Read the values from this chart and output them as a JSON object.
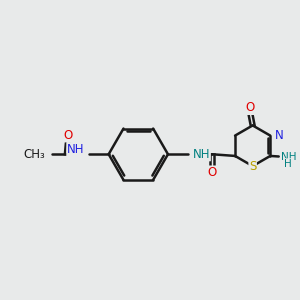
{
  "background_color": "#e8eaea",
  "bond_color": "#1a1a1a",
  "bond_width": 1.8,
  "atom_colors": {
    "C": "#1a1a1a",
    "N": "#2020e0",
    "O": "#e00000",
    "S": "#b8a000",
    "NH": "#008080",
    "NH2": "#2020e0"
  },
  "font_size": 8.5,
  "fig_width": 3.0,
  "fig_height": 3.0,
  "dpi": 100
}
